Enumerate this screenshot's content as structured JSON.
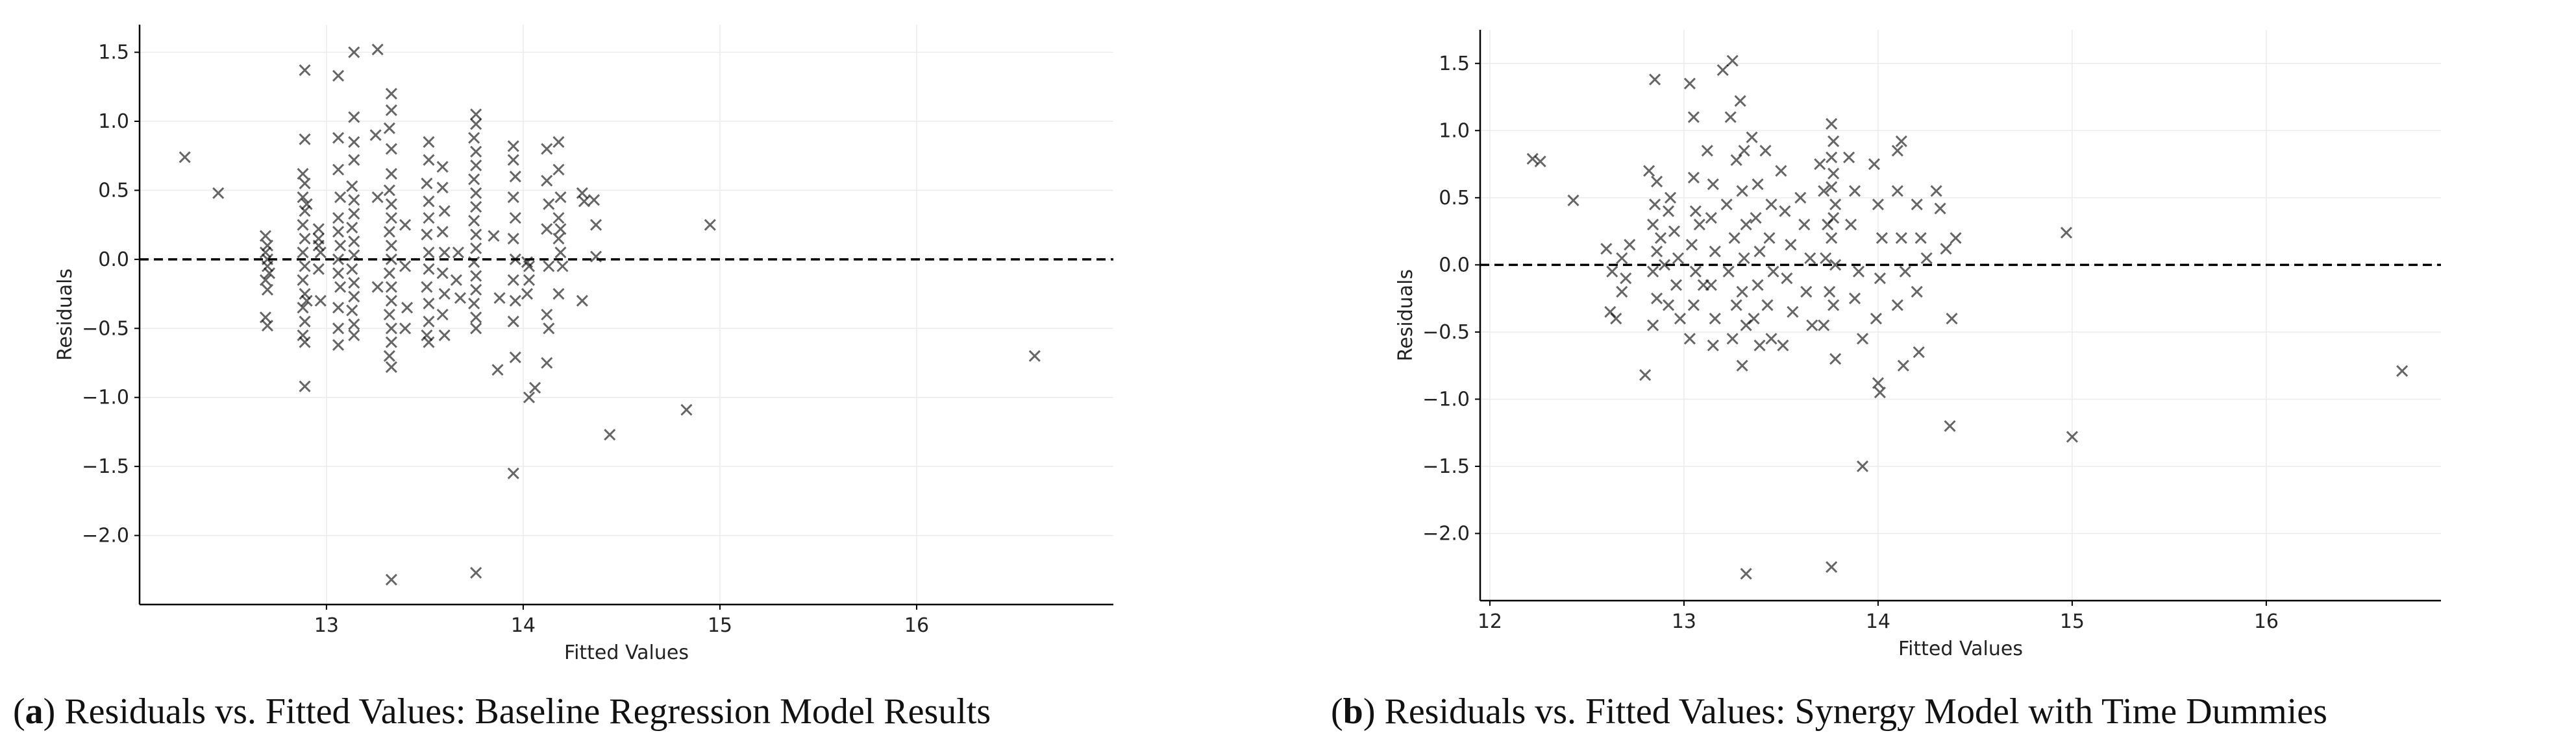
{
  "chart_data": [
    {
      "type": "scatter",
      "xlabel": "Fitted Values",
      "ylabel": "Residuals",
      "xlim": [
        12.05,
        17.0
      ],
      "ylim": [
        -2.5,
        1.7
      ],
      "xticks": [
        13,
        14,
        15,
        16
      ],
      "yticks": [
        -2.0,
        -1.5,
        -1.0,
        -0.5,
        0.0,
        0.5,
        1.0,
        1.5
      ],
      "grid": true,
      "reference_line": 0.0,
      "marker": "x",
      "caption": {
        "label": "a",
        "text": "Residuals vs. Fitted Values: Baseline Regression Model Results"
      },
      "points": [
        [
          12.28,
          0.74
        ],
        [
          12.45,
          0.48
        ],
        [
          12.69,
          0.17
        ],
        [
          12.69,
          0.05
        ],
        [
          12.7,
          -0.05
        ],
        [
          12.69,
          -0.15
        ],
        [
          12.7,
          -0.22
        ],
        [
          12.69,
          -0.42
        ],
        [
          12.7,
          -0.48
        ],
        [
          12.7,
          0.0
        ],
        [
          12.71,
          -0.1
        ],
        [
          12.7,
          0.1
        ],
        [
          12.89,
          1.37
        ],
        [
          12.89,
          0.87
        ],
        [
          12.88,
          0.62
        ],
        [
          12.89,
          0.55
        ],
        [
          12.88,
          0.45
        ],
        [
          12.89,
          0.35
        ],
        [
          12.88,
          0.25
        ],
        [
          12.89,
          0.15
        ],
        [
          12.88,
          0.05
        ],
        [
          12.89,
          -0.05
        ],
        [
          12.88,
          -0.15
        ],
        [
          12.89,
          -0.25
        ],
        [
          12.88,
          -0.35
        ],
        [
          12.89,
          -0.45
        ],
        [
          12.88,
          -0.55
        ],
        [
          12.89,
          -0.6
        ],
        [
          12.89,
          -0.92
        ],
        [
          12.9,
          0.4
        ],
        [
          12.9,
          -0.3
        ],
        [
          12.96,
          0.22
        ],
        [
          12.96,
          0.15
        ],
        [
          12.97,
          0.05
        ],
        [
          12.96,
          -0.07
        ],
        [
          12.97,
          -0.3
        ],
        [
          12.96,
          0.1
        ],
        [
          13.06,
          1.33
        ],
        [
          13.06,
          0.88
        ],
        [
          13.06,
          0.65
        ],
        [
          13.07,
          0.45
        ],
        [
          13.06,
          0.3
        ],
        [
          13.06,
          0.2
        ],
        [
          13.07,
          0.1
        ],
        [
          13.06,
          0.0
        ],
        [
          13.06,
          -0.1
        ],
        [
          13.07,
          -0.2
        ],
        [
          13.06,
          -0.35
        ],
        [
          13.06,
          -0.5
        ],
        [
          13.06,
          -0.62
        ],
        [
          13.14,
          1.5
        ],
        [
          13.14,
          1.03
        ],
        [
          13.14,
          0.85
        ],
        [
          13.14,
          0.72
        ],
        [
          13.13,
          0.53
        ],
        [
          13.14,
          0.43
        ],
        [
          13.14,
          0.33
        ],
        [
          13.13,
          0.23
        ],
        [
          13.14,
          0.13
        ],
        [
          13.14,
          0.03
        ],
        [
          13.13,
          -0.07
        ],
        [
          13.14,
          -0.17
        ],
        [
          13.14,
          -0.27
        ],
        [
          13.13,
          -0.37
        ],
        [
          13.14,
          -0.47
        ],
        [
          13.14,
          -0.55
        ],
        [
          13.26,
          1.52
        ],
        [
          13.25,
          0.9
        ],
        [
          13.26,
          0.45
        ],
        [
          13.26,
          -0.2
        ],
        [
          13.33,
          1.2
        ],
        [
          13.33,
          1.08
        ],
        [
          13.32,
          0.95
        ],
        [
          13.33,
          0.8
        ],
        [
          13.33,
          0.62
        ],
        [
          13.32,
          0.5
        ],
        [
          13.33,
          0.4
        ],
        [
          13.33,
          0.3
        ],
        [
          13.32,
          0.2
        ],
        [
          13.33,
          0.1
        ],
        [
          13.33,
          0.0
        ],
        [
          13.32,
          -0.1
        ],
        [
          13.33,
          -0.2
        ],
        [
          13.33,
          -0.3
        ],
        [
          13.32,
          -0.4
        ],
        [
          13.33,
          -0.5
        ],
        [
          13.33,
          -0.6
        ],
        [
          13.32,
          -0.7
        ],
        [
          13.33,
          -0.78
        ],
        [
          13.33,
          -2.32
        ],
        [
          13.4,
          0.25
        ],
        [
          13.4,
          -0.05
        ],
        [
          13.41,
          -0.35
        ],
        [
          13.4,
          -0.5
        ],
        [
          13.52,
          0.85
        ],
        [
          13.52,
          0.72
        ],
        [
          13.51,
          0.55
        ],
        [
          13.52,
          0.42
        ],
        [
          13.52,
          0.3
        ],
        [
          13.51,
          0.18
        ],
        [
          13.52,
          0.05
        ],
        [
          13.52,
          -0.07
        ],
        [
          13.51,
          -0.2
        ],
        [
          13.52,
          -0.32
        ],
        [
          13.52,
          -0.45
        ],
        [
          13.51,
          -0.55
        ],
        [
          13.52,
          -0.6
        ],
        [
          13.59,
          0.67
        ],
        [
          13.59,
          0.52
        ],
        [
          13.6,
          0.35
        ],
        [
          13.59,
          0.2
        ],
        [
          13.6,
          0.05
        ],
        [
          13.59,
          -0.1
        ],
        [
          13.6,
          -0.25
        ],
        [
          13.59,
          -0.4
        ],
        [
          13.6,
          -0.55
        ],
        [
          13.67,
          0.05
        ],
        [
          13.68,
          -0.28
        ],
        [
          13.66,
          -0.15
        ],
        [
          13.76,
          1.05
        ],
        [
          13.76,
          0.98
        ],
        [
          13.75,
          0.88
        ],
        [
          13.76,
          0.78
        ],
        [
          13.76,
          0.68
        ],
        [
          13.75,
          0.58
        ],
        [
          13.76,
          0.48
        ],
        [
          13.76,
          0.38
        ],
        [
          13.75,
          0.28
        ],
        [
          13.76,
          0.18
        ],
        [
          13.76,
          0.08
        ],
        [
          13.75,
          -0.02
        ],
        [
          13.76,
          -0.12
        ],
        [
          13.76,
          -0.22
        ],
        [
          13.75,
          -0.32
        ],
        [
          13.76,
          -0.42
        ],
        [
          13.76,
          -0.5
        ],
        [
          13.76,
          -2.27
        ],
        [
          13.85,
          0.17
        ],
        [
          13.88,
          -0.28
        ],
        [
          13.87,
          -0.8
        ],
        [
          13.95,
          0.82
        ],
        [
          13.95,
          0.72
        ],
        [
          13.96,
          0.6
        ],
        [
          13.95,
          0.45
        ],
        [
          13.96,
          0.3
        ],
        [
          13.95,
          0.15
        ],
        [
          13.96,
          0.0
        ],
        [
          13.95,
          -0.15
        ],
        [
          13.96,
          -0.3
        ],
        [
          13.95,
          -0.45
        ],
        [
          13.96,
          -0.71
        ],
        [
          13.95,
          -1.55
        ],
        [
          14.02,
          -0.02
        ],
        [
          14.03,
          -0.15
        ],
        [
          14.02,
          -0.25
        ],
        [
          14.03,
          -0.05
        ],
        [
          14.03,
          -1.0
        ],
        [
          14.06,
          -0.93
        ],
        [
          14.12,
          0.8
        ],
        [
          14.12,
          0.57
        ],
        [
          14.13,
          0.4
        ],
        [
          14.12,
          0.22
        ],
        [
          14.13,
          -0.05
        ],
        [
          14.12,
          -0.4
        ],
        [
          14.13,
          -0.5
        ],
        [
          14.12,
          -0.75
        ],
        [
          14.18,
          0.85
        ],
        [
          14.18,
          0.65
        ],
        [
          14.19,
          0.45
        ],
        [
          14.18,
          0.3
        ],
        [
          14.19,
          0.22
        ],
        [
          14.18,
          0.15
        ],
        [
          14.19,
          0.05
        ],
        [
          14.18,
          -0.25
        ],
        [
          14.2,
          -0.05
        ],
        [
          14.3,
          0.48
        ],
        [
          14.31,
          0.42
        ],
        [
          14.3,
          -0.3
        ],
        [
          14.36,
          0.43
        ],
        [
          14.37,
          0.25
        ],
        [
          14.37,
          0.02
        ],
        [
          14.44,
          -1.27
        ],
        [
          14.83,
          -1.09
        ],
        [
          14.95,
          0.25
        ],
        [
          16.6,
          -0.7
        ]
      ]
    },
    {
      "type": "scatter",
      "xlabel": "Fitted Values",
      "ylabel": "Residuals",
      "xlim": [
        11.95,
        16.9
      ],
      "ylim": [
        -2.5,
        1.75
      ],
      "xticks": [
        12,
        13,
        14,
        15,
        16
      ],
      "yticks": [
        -2.0,
        -1.5,
        -1.0,
        -0.5,
        0.0,
        0.5,
        1.0,
        1.5
      ],
      "grid": true,
      "reference_line": 0.0,
      "marker": "x",
      "caption": {
        "label": "b",
        "text": "Residuals vs. Fitted Values: Synergy Model with Time Dummies"
      },
      "points": [
        [
          12.22,
          0.79
        ],
        [
          12.26,
          0.77
        ],
        [
          12.43,
          0.48
        ],
        [
          12.6,
          0.12
        ],
        [
          12.63,
          -0.05
        ],
        [
          12.62,
          -0.35
        ],
        [
          12.65,
          -0.4
        ],
        [
          12.68,
          0.05
        ],
        [
          12.7,
          -0.1
        ],
        [
          12.72,
          0.15
        ],
        [
          12.68,
          -0.2
        ],
        [
          12.8,
          -0.82
        ],
        [
          12.82,
          0.7
        ],
        [
          12.85,
          1.38
        ],
        [
          12.86,
          0.62
        ],
        [
          12.85,
          0.45
        ],
        [
          12.84,
          0.3
        ],
        [
          12.86,
          0.1
        ],
        [
          12.84,
          -0.05
        ],
        [
          12.86,
          -0.25
        ],
        [
          12.84,
          -0.45
        ],
        [
          12.88,
          0.2
        ],
        [
          12.9,
          0.0
        ],
        [
          12.92,
          -0.3
        ],
        [
          12.93,
          0.5
        ],
        [
          12.95,
          0.25
        ],
        [
          12.97,
          0.05
        ],
        [
          12.96,
          -0.15
        ],
        [
          12.98,
          -0.4
        ],
        [
          12.92,
          0.4
        ],
        [
          13.03,
          1.35
        ],
        [
          13.05,
          1.1
        ],
        [
          13.05,
          0.65
        ],
        [
          13.06,
          0.4
        ],
        [
          13.04,
          0.15
        ],
        [
          13.06,
          -0.05
        ],
        [
          13.05,
          -0.3
        ],
        [
          13.03,
          -0.55
        ],
        [
          13.08,
          0.3
        ],
        [
          13.1,
          -0.15
        ],
        [
          13.12,
          0.85
        ],
        [
          13.15,
          0.6
        ],
        [
          13.14,
          0.35
        ],
        [
          13.16,
          0.1
        ],
        [
          13.14,
          -0.15
        ],
        [
          13.16,
          -0.4
        ],
        [
          13.15,
          -0.6
        ],
        [
          13.2,
          1.45
        ],
        [
          13.25,
          1.52
        ],
        [
          13.24,
          1.1
        ],
        [
          13.27,
          0.78
        ],
        [
          13.22,
          0.45
        ],
        [
          13.26,
          0.2
        ],
        [
          13.23,
          -0.05
        ],
        [
          13.27,
          -0.3
        ],
        [
          13.25,
          -0.55
        ],
        [
          13.29,
          1.22
        ],
        [
          13.31,
          0.85
        ],
        [
          13.3,
          0.55
        ],
        [
          13.32,
          0.3
        ],
        [
          13.31,
          0.05
        ],
        [
          13.3,
          -0.2
        ],
        [
          13.32,
          -0.45
        ],
        [
          13.3,
          -0.75
        ],
        [
          13.32,
          -2.3
        ],
        [
          13.35,
          0.95
        ],
        [
          13.38,
          0.6
        ],
        [
          13.37,
          0.35
        ],
        [
          13.39,
          0.1
        ],
        [
          13.38,
          -0.15
        ],
        [
          13.36,
          -0.4
        ],
        [
          13.39,
          -0.6
        ],
        [
          13.42,
          0.85
        ],
        [
          13.45,
          0.45
        ],
        [
          13.44,
          0.2
        ],
        [
          13.46,
          -0.05
        ],
        [
          13.43,
          -0.3
        ],
        [
          13.45,
          -0.55
        ],
        [
          13.5,
          0.7
        ],
        [
          13.52,
          0.4
        ],
        [
          13.55,
          0.15
        ],
        [
          13.53,
          -0.1
        ],
        [
          13.56,
          -0.35
        ],
        [
          13.51,
          -0.6
        ],
        [
          13.6,
          0.5
        ],
        [
          13.62,
          0.3
        ],
        [
          13.65,
          0.05
        ],
        [
          13.63,
          -0.2
        ],
        [
          13.66,
          -0.45
        ],
        [
          13.7,
          0.75
        ],
        [
          13.72,
          0.55
        ],
        [
          13.74,
          0.3
        ],
        [
          13.73,
          0.05
        ],
        [
          13.75,
          -0.2
        ],
        [
          13.72,
          -0.45
        ],
        [
          13.78,
          -0.7
        ],
        [
          13.76,
          1.05
        ],
        [
          13.77,
          0.92
        ],
        [
          13.76,
          0.8
        ],
        [
          13.77,
          0.68
        ],
        [
          13.76,
          0.58
        ],
        [
          13.78,
          0.45
        ],
        [
          13.77,
          0.35
        ],
        [
          13.76,
          0.2
        ],
        [
          13.78,
          0.0
        ],
        [
          13.77,
          -0.3
        ],
        [
          13.76,
          -2.25
        ],
        [
          13.85,
          0.8
        ],
        [
          13.88,
          0.55
        ],
        [
          13.86,
          0.3
        ],
        [
          13.9,
          -0.05
        ],
        [
          13.88,
          -0.25
        ],
        [
          13.92,
          -0.55
        ],
        [
          13.92,
          -1.5
        ],
        [
          13.98,
          0.75
        ],
        [
          14.0,
          0.45
        ],
        [
          14.02,
          0.2
        ],
        [
          14.01,
          -0.1
        ],
        [
          13.99,
          -0.4
        ],
        [
          14.0,
          -0.88
        ],
        [
          14.01,
          -0.95
        ],
        [
          14.12,
          0.92
        ],
        [
          14.1,
          0.55
        ],
        [
          14.12,
          0.2
        ],
        [
          14.14,
          -0.05
        ],
        [
          14.1,
          -0.3
        ],
        [
          14.13,
          -0.75
        ],
        [
          14.1,
          0.85
        ],
        [
          14.2,
          0.45
        ],
        [
          14.22,
          0.2
        ],
        [
          14.2,
          -0.2
        ],
        [
          14.21,
          -0.65
        ],
        [
          14.25,
          0.05
        ],
        [
          14.3,
          0.55
        ],
        [
          14.32,
          0.42
        ],
        [
          14.35,
          0.12
        ],
        [
          14.4,
          0.2
        ],
        [
          14.38,
          -0.4
        ],
        [
          14.37,
          -1.2
        ],
        [
          14.97,
          0.24
        ],
        [
          15.0,
          -1.28
        ],
        [
          16.7,
          -0.79
        ]
      ]
    }
  ]
}
